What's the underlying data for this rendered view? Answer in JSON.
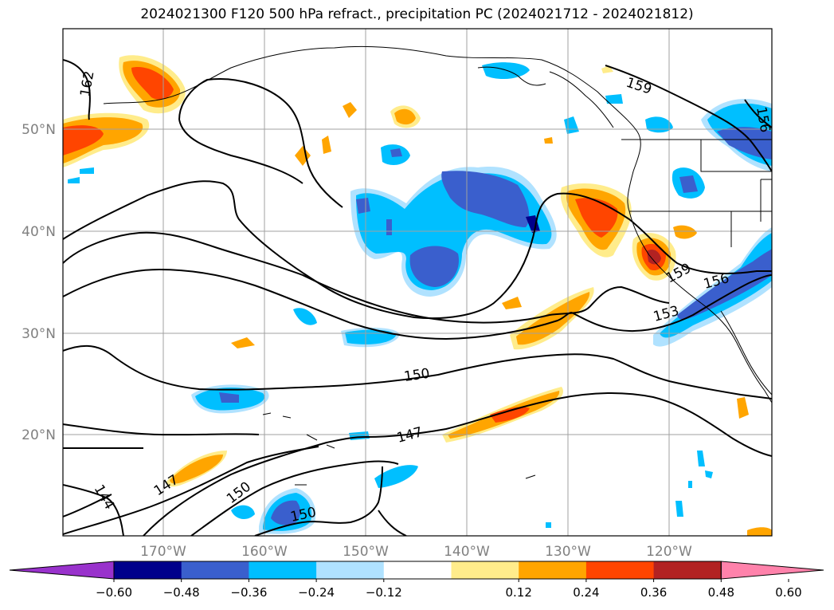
{
  "title": "2024021300 F120 500 hPa refract., precipitation PC (2024021712 - 2024021812)",
  "axes": {
    "lon_labels": [
      "170°W",
      "160°W",
      "150°W",
      "140°W",
      "130°W",
      "120°W"
    ],
    "lat_labels": [
      "50°N",
      "40°N",
      "30°N",
      "20°N"
    ]
  },
  "contour_labels": [
    "162",
    "159",
    "156",
    "159",
    "156",
    "153",
    "150",
    "147",
    "147",
    "150",
    "150",
    "144"
  ],
  "colorbar": {
    "ticks": [
      "−0.60",
      "−0.48",
      "−0.36",
      "−0.24",
      "−0.12",
      "0.12",
      "0.24",
      "0.36",
      "0.48",
      "0.60"
    ],
    "colors": [
      "#9932cc",
      "#00008b",
      "#3a5fcd",
      "#00bfff",
      "#b0e2ff",
      "#ffffff",
      "#ffec8b",
      "#ffa500",
      "#ff4500",
      "#b22222",
      "#ff82ab"
    ]
  }
}
